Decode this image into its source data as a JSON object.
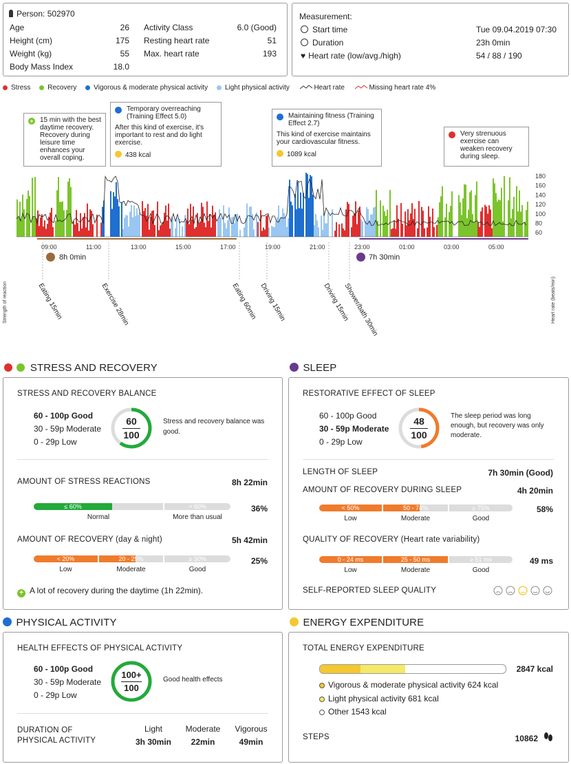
{
  "person": {
    "label": "Person: 502970",
    "fields": [
      {
        "label": "Age",
        "value": "26"
      },
      {
        "label": "Height (cm)",
        "value": "175"
      },
      {
        "label": "Weight (kg)",
        "value": "55"
      },
      {
        "label": "Body Mass Index",
        "value": "18.0"
      }
    ],
    "fields2": [
      {
        "label": "Activity Class",
        "value": "6.0 (Good)"
      },
      {
        "label": "Resting heart rate",
        "value": "51"
      },
      {
        "label": "Max. heart rate",
        "value": "193"
      }
    ]
  },
  "measurement": {
    "title": "Measurement:",
    "rows": [
      {
        "label": "Start time",
        "value": "Tue 09.04.2019 07:30"
      },
      {
        "label": "Duration",
        "value": "23h 0min"
      },
      {
        "label": "Heart rate (low/avg./high)",
        "value": "54 / 88 / 190"
      }
    ]
  },
  "legend": {
    "stress": "Stress",
    "recovery": "Recovery",
    "vigorous": "Vigorous & moderate physical activity",
    "light": "Light physical activity",
    "heart_rate": "Heart rate",
    "missing": "Missing heart rate 4%"
  },
  "colors": {
    "stress": "#e02f2f",
    "recovery": "#7cc42c",
    "vigorous": "#1f6fd0",
    "light": "#99c6f2",
    "orange": "#f07b2c",
    "green": "#22aa3a",
    "purple": "#6a3a8c",
    "yellow": "#f5c730",
    "lightyellow": "#f5e96a"
  },
  "chart": {
    "y_left_label": "Strength of reaction",
    "y_right_label": "Heart rate (beats/min)",
    "y_ticks": [
      "180",
      "160",
      "140",
      "120",
      "100",
      "80",
      "60"
    ],
    "x_ticks": [
      "09:00",
      "11:00",
      "13:00",
      "15:00",
      "17:00",
      "19:00",
      "21:00",
      "23:00",
      "01:00",
      "03:00",
      "05:00"
    ],
    "callouts": [
      {
        "text": "15 min with the best daytime recovery. Recovery during leisure time enhances your overall coping."
      },
      {
        "title": "Temporary overreaching (Training Effect 5.0)",
        "text": "After this kind of exercise, it's important to rest and do light exercise.",
        "kcal": "438 kcal"
      },
      {
        "title": "Maintaining fitness (Training Effect 2.7)",
        "text": "This kind of exercise maintains your cardiovascular fitness.",
        "kcal": "1089 kcal"
      },
      {
        "text": "Very strenuous exercise can weaken recovery during sleep."
      }
    ],
    "work": "8h 0min",
    "sleep": "7h 30min",
    "events": [
      "Eating 15min",
      "Exercise 28min",
      "Eating 60min",
      "Driving 15min",
      "Driving 15min",
      "Shower/bath 30min"
    ]
  },
  "stress_recovery": {
    "title": "STRESS AND RECOVERY",
    "balance_title": "STRESS AND RECOVERY BALANCE",
    "scale": [
      "60 - 100p Good",
      "30 - 59p Moderate",
      "0 - 29p Low"
    ],
    "score": "60",
    "score_max": "100",
    "score_fraction": 0.6,
    "balance_text": "Stress and recovery balance was good.",
    "stress_reactions_title": "AMOUNT OF STRESS REACTIONS",
    "stress_reactions_value": "8h 22min",
    "stress_pct": "36%",
    "stress_segments": [
      {
        "label": "≤ 60%",
        "caption": "Normal"
      },
      {
        "label": "> 60%",
        "caption": "More than usual"
      }
    ],
    "recovery_title": "AMOUNT OF RECOVERY (day & night)",
    "recovery_value": "5h 42min",
    "recovery_pct": "25%",
    "recovery_segments": [
      {
        "label": "< 20%",
        "caption": "Low"
      },
      {
        "label": "20 - 29%",
        "caption": "Moderate"
      },
      {
        "label": "≥ 30%",
        "caption": "Good"
      }
    ],
    "note": "A lot of recovery during the daytime (1h 22min)."
  },
  "sleep": {
    "title": "SLEEP",
    "effect_title": "RESTORATIVE EFFECT OF SLEEP",
    "scale": [
      "60 - 100p Good",
      "30 - 59p Moderate",
      "0 - 29p Low"
    ],
    "score": "48",
    "score_max": "100",
    "score_fraction": 0.48,
    "effect_text": "The sleep period was long enough, but recovery was only moderate.",
    "length_title": "LENGTH OF SLEEP",
    "length_value": "7h 30min (Good)",
    "recovery_title": "AMOUNT OF RECOVERY DURING SLEEP",
    "recovery_value": "4h 20min",
    "recovery_pct": "58%",
    "recovery_segments": [
      {
        "label": "< 50%",
        "caption": "Low"
      },
      {
        "label": "50 - 74%",
        "caption": "Moderate"
      },
      {
        "label": "≥ 75%",
        "caption": "Good"
      }
    ],
    "quality_title": "QUALITY OF RECOVERY (Heart rate variability)",
    "quality_value": "49 ms",
    "quality_segments": [
      {
        "label": "0 - 24 ms",
        "caption": "Low"
      },
      {
        "label": "25 - 50 ms",
        "caption": "Moderate"
      },
      {
        "label": "≥ 51 ms",
        "caption": "Good"
      }
    ],
    "self_title": "SELF-REPORTED SLEEP QUALITY"
  },
  "physical": {
    "title": "PHYSICAL ACTIVITY",
    "health_title": "HEALTH EFFECTS OF PHYSICAL ACTIVITY",
    "scale": [
      "60 - 100p Good",
      "30 - 59p Moderate",
      "0 - 29p Low"
    ],
    "score": "100+",
    "score_max": "100",
    "score_fraction": 1.0,
    "health_text": "Good health effects",
    "duration_title_1": "DURATION OF",
    "duration_title_2": "PHYSICAL ACTIVITY",
    "cols": [
      {
        "label": "Light",
        "value": "3h 30min"
      },
      {
        "label": "Moderate",
        "value": "22min"
      },
      {
        "label": "Vigorous",
        "value": "49min"
      }
    ]
  },
  "energy": {
    "title": "ENERGY EXPENDITURE",
    "total_title": "TOTAL ENERGY EXPENDITURE",
    "total_value": "2847 kcal",
    "parts": [
      {
        "label": "Vigorous & moderate physical activity 624 kcal",
        "kcal": 624
      },
      {
        "label": "Light physical activity 681 kcal",
        "kcal": 681
      },
      {
        "label": "Other 1543 kcal",
        "kcal": 1543
      }
    ],
    "steps_title": "STEPS",
    "steps_value": "10862"
  }
}
